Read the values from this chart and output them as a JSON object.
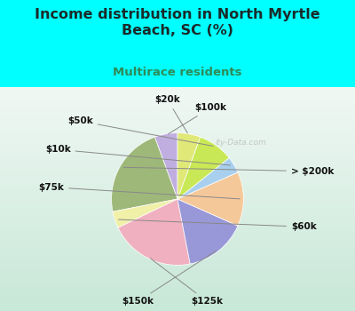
{
  "title": "Income distribution in North Myrtle\nBeach, SC (%)",
  "subtitle": "Multirace residents",
  "labels": [
    "$100k",
    "> $200k",
    "$60k",
    "$125k",
    "$150k",
    "$75k",
    "$10k",
    "$50k",
    "$20k"
  ],
  "sizes": [
    5.5,
    22.0,
    4.0,
    20.5,
    15.0,
    13.0,
    4.0,
    8.5,
    5.5
  ],
  "colors": [
    "#c0aee0",
    "#9eb87a",
    "#f0f0a8",
    "#f0b0c0",
    "#9898d8",
    "#f5c89a",
    "#a8d0ee",
    "#c8e855",
    "#e0e878"
  ],
  "start_angle": 90,
  "bg_color": "#00ffff",
  "chart_bg_top": "#f0f8f0",
  "chart_bg_bottom": "#d0e8d8",
  "title_color": "#1a2a2a",
  "subtitle_color": "#2e8b57",
  "label_color": "#111111",
  "watermark": "ity-Data.com"
}
